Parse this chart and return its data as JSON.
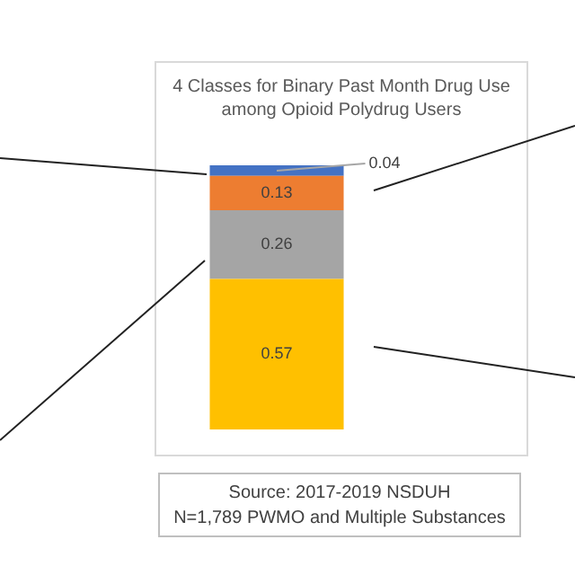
{
  "chart_data": {
    "type": "bar",
    "title": "4 Classes for Binary Past Month Drug Use among Opioid Polydrug Users",
    "categories": [
      null
    ],
    "stacked": true,
    "data_labels": true,
    "legend": false,
    "series": [
      {
        "color": "#ffc000",
        "values": [
          0.57
        ]
      },
      {
        "color": "#a5a5a5",
        "values": [
          0.26
        ]
      },
      {
        "color": "#ed7d31",
        "values": [
          0.13
        ]
      },
      {
        "color": "#4472c4",
        "values": [
          0.04
        ]
      }
    ],
    "annotations": [
      "Source: 2017-2019 NSDUH",
      "N=1,789 PWMO and Multiple Substances"
    ]
  }
}
